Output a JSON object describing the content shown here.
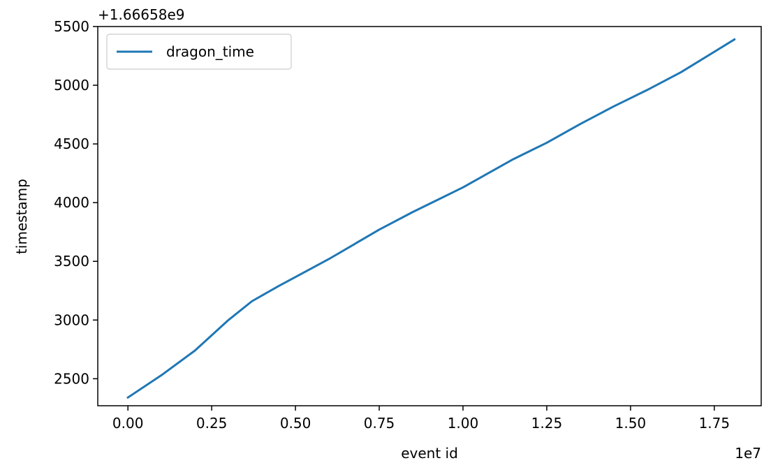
{
  "chart_data": {
    "type": "line",
    "xlabel": "event id",
    "ylabel": "timestamp",
    "x_offset_text": "1e7",
    "y_offset_text": "+1.66658e9",
    "xlim": [
      -0.09,
      1.89
    ],
    "ylim": [
      2270,
      5500
    ],
    "xticks": [
      0.0,
      0.25,
      0.5,
      0.75,
      1.0,
      1.25,
      1.5,
      1.75
    ],
    "xtick_labels": [
      "0.00",
      "0.25",
      "0.50",
      "0.75",
      "1.00",
      "1.25",
      "1.50",
      "1.75"
    ],
    "yticks": [
      2500,
      3000,
      3500,
      4000,
      4500,
      5000,
      5500
    ],
    "ytick_labels": [
      "2500",
      "3000",
      "3500",
      "4000",
      "4500",
      "5000",
      "5500"
    ],
    "grid": false,
    "legend_position": "top-left",
    "series": [
      {
        "name": "dragon_time",
        "color": "#1f77b4",
        "x": [
          0.0,
          0.1,
          0.2,
          0.3,
          0.37,
          0.45,
          0.6,
          0.75,
          0.85,
          1.0,
          1.15,
          1.25,
          1.35,
          1.45,
          1.55,
          1.65,
          1.81
        ],
        "y": [
          2340,
          2530,
          2740,
          3000,
          3160,
          3290,
          3520,
          3770,
          3920,
          4130,
          4370,
          4510,
          4670,
          4820,
          4960,
          5110,
          5390
        ]
      }
    ]
  }
}
